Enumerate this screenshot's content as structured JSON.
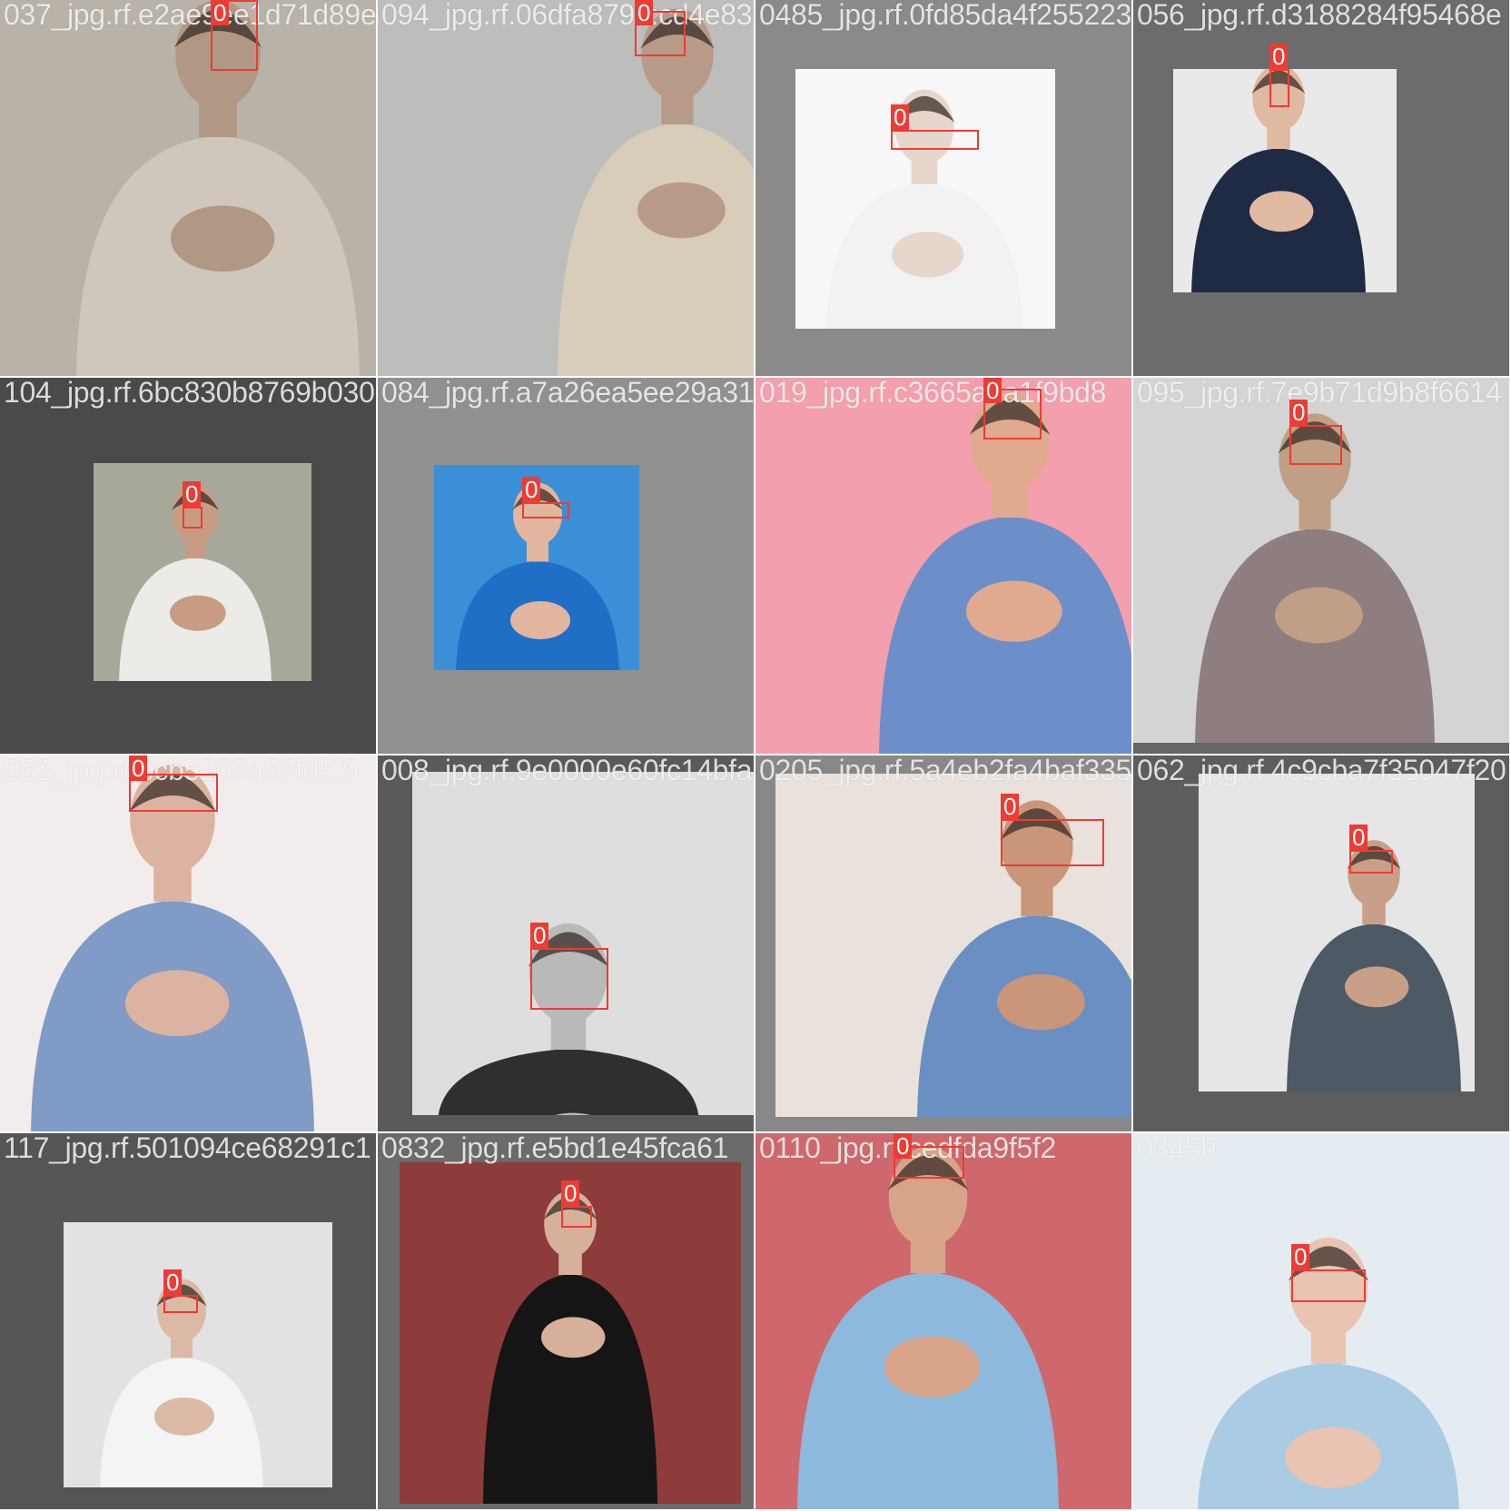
{
  "mosaic": {
    "tiles": [
      {
        "filename": "037_jpg.rf.e2ae9ee1d71d89e",
        "bg": "#a3a19d",
        "photo_color": "#b8b2a8",
        "skin": "#b09884",
        "shirt": "#cfc7bb",
        "label": "0"
      },
      {
        "filename": "094_jpg.rf.06dfa879b:cd4e83",
        "bg": "#9a9a9a",
        "photo_color": "#bdbdbb",
        "skin": "#b79a87",
        "shirt": "#d8cdb9",
        "label": "0"
      },
      {
        "filename": "0485_jpg.rf.0fd85da4f255223",
        "bg": "#8a8a8a",
        "photo_color": "#f7f7f7",
        "skin": "#e6d6cc",
        "shirt": "#f2f2f2",
        "label": "0"
      },
      {
        "filename": "056_jpg.rf.d3188284f95468e",
        "bg": "#6c6c6c",
        "photo_color": "#e9e9e9",
        "skin": "#e0b9a1",
        "shirt": "#1f2a44",
        "label": "0"
      },
      {
        "filename": "104_jpg.rf.6bc830b8769b030",
        "bg": "#4a4a4a",
        "photo_color": "#a8a89a",
        "skin": "#c79c82",
        "shirt": "#ecebe7",
        "label": "0"
      },
      {
        "filename": "084_jpg.rf.a7a26ea5ee29a31",
        "bg": "#909090",
        "photo_color": "#3b8fd6",
        "skin": "#e2b59f",
        "shirt": "#1f6fc7",
        "label": "0"
      },
      {
        "filename": "019_jpg.rf.c3665a7a1f9bd8",
        "bg": "#ef9aa8",
        "photo_color": "#f49fad",
        "skin": "#e0aa8e",
        "shirt": "#6c8fc9",
        "label": "0"
      },
      {
        "filename": "095_jpg.rf.7e9b71d9b8f6614",
        "bg": "#666666",
        "photo_color": "#d4d4d4",
        "skin": "#c19f85",
        "shirt": "#8f7e80",
        "label": "0"
      },
      {
        "filename": "032_jpg.rf.bcb5208a39fd5f9",
        "bg": "#f4eeee",
        "photo_color": "#f3ecec",
        "skin": "#dbb3a0",
        "shirt": "#7f9bc6",
        "label": "0"
      },
      {
        "filename": "008_jpg.rf.9e0000e60fc14bfa",
        "bg": "#5a5a5a",
        "photo_color": "#dedede",
        "skin": "#b9b9b9",
        "shirt": "#2f2f2f",
        "label": "0"
      },
      {
        "filename": "0205_jpg.rf.5a4eb2fa4baf335",
        "bg": "#888888",
        "photo_color": "#e8e1dc",
        "skin": "#c99679",
        "shirt": "#6a8fc3",
        "label": "0"
      },
      {
        "filename": "062_jpg.rf.4c9cba7f35047f20",
        "bg": "#5d5d5d",
        "photo_color": "#e6e6e6",
        "skin": "#c8a088",
        "shirt": "#4e5966",
        "label": "0"
      },
      {
        "filename": "117_jpg.rf.501094ce68291c1",
        "bg": "#555555",
        "photo_color": "#e2e2e2",
        "skin": "#dcb9a4",
        "shirt": "#f4f4f4",
        "label": "0"
      },
      {
        "filename": "0832_jpg.rf.e5bd1e45fca61",
        "bg": "#6b6b6b",
        "photo_color": "#8e3b3b",
        "skin": "#d6b09a",
        "shirt": "#151515",
        "label": "0"
      },
      {
        "filename": "0110_jpg.rf.cedfda9f5f2",
        "bg": "#c9666b",
        "photo_color": "#cf686d",
        "skin": "#d8a489",
        "shirt": "#8db9dc",
        "label": "0"
      },
      {
        "filename": "0345b",
        "bg": "#d9e3ea",
        "photo_color": "#e5ecf1",
        "skin": "#e9c4b2",
        "shirt": "#a9cbe4",
        "label": "0"
      }
    ]
  }
}
